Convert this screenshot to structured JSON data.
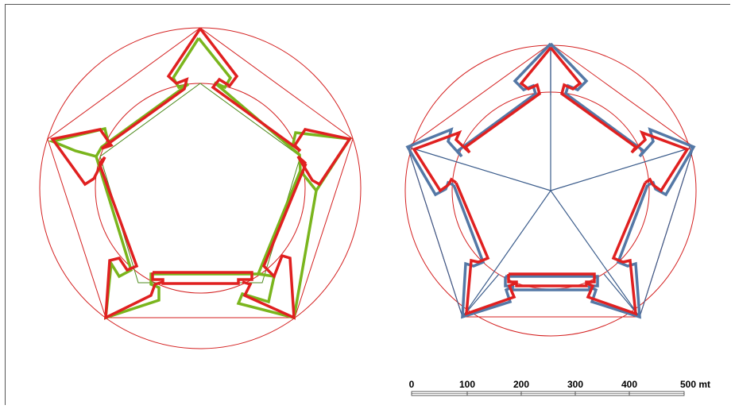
{
  "colors": {
    "background": "#ffffff",
    "construction_red": "#d42020",
    "bastion_red": "#e02020",
    "bastion_green": "#7ab51d",
    "bastion_blue": "#5478a6",
    "guide_blue": "#3c5d8c",
    "guide_green": "#4c8a1c"
  },
  "scale_bar": {
    "unit": "mt",
    "ticks": [
      "0",
      "100",
      "200",
      "300",
      "400",
      "500 mt"
    ]
  }
}
